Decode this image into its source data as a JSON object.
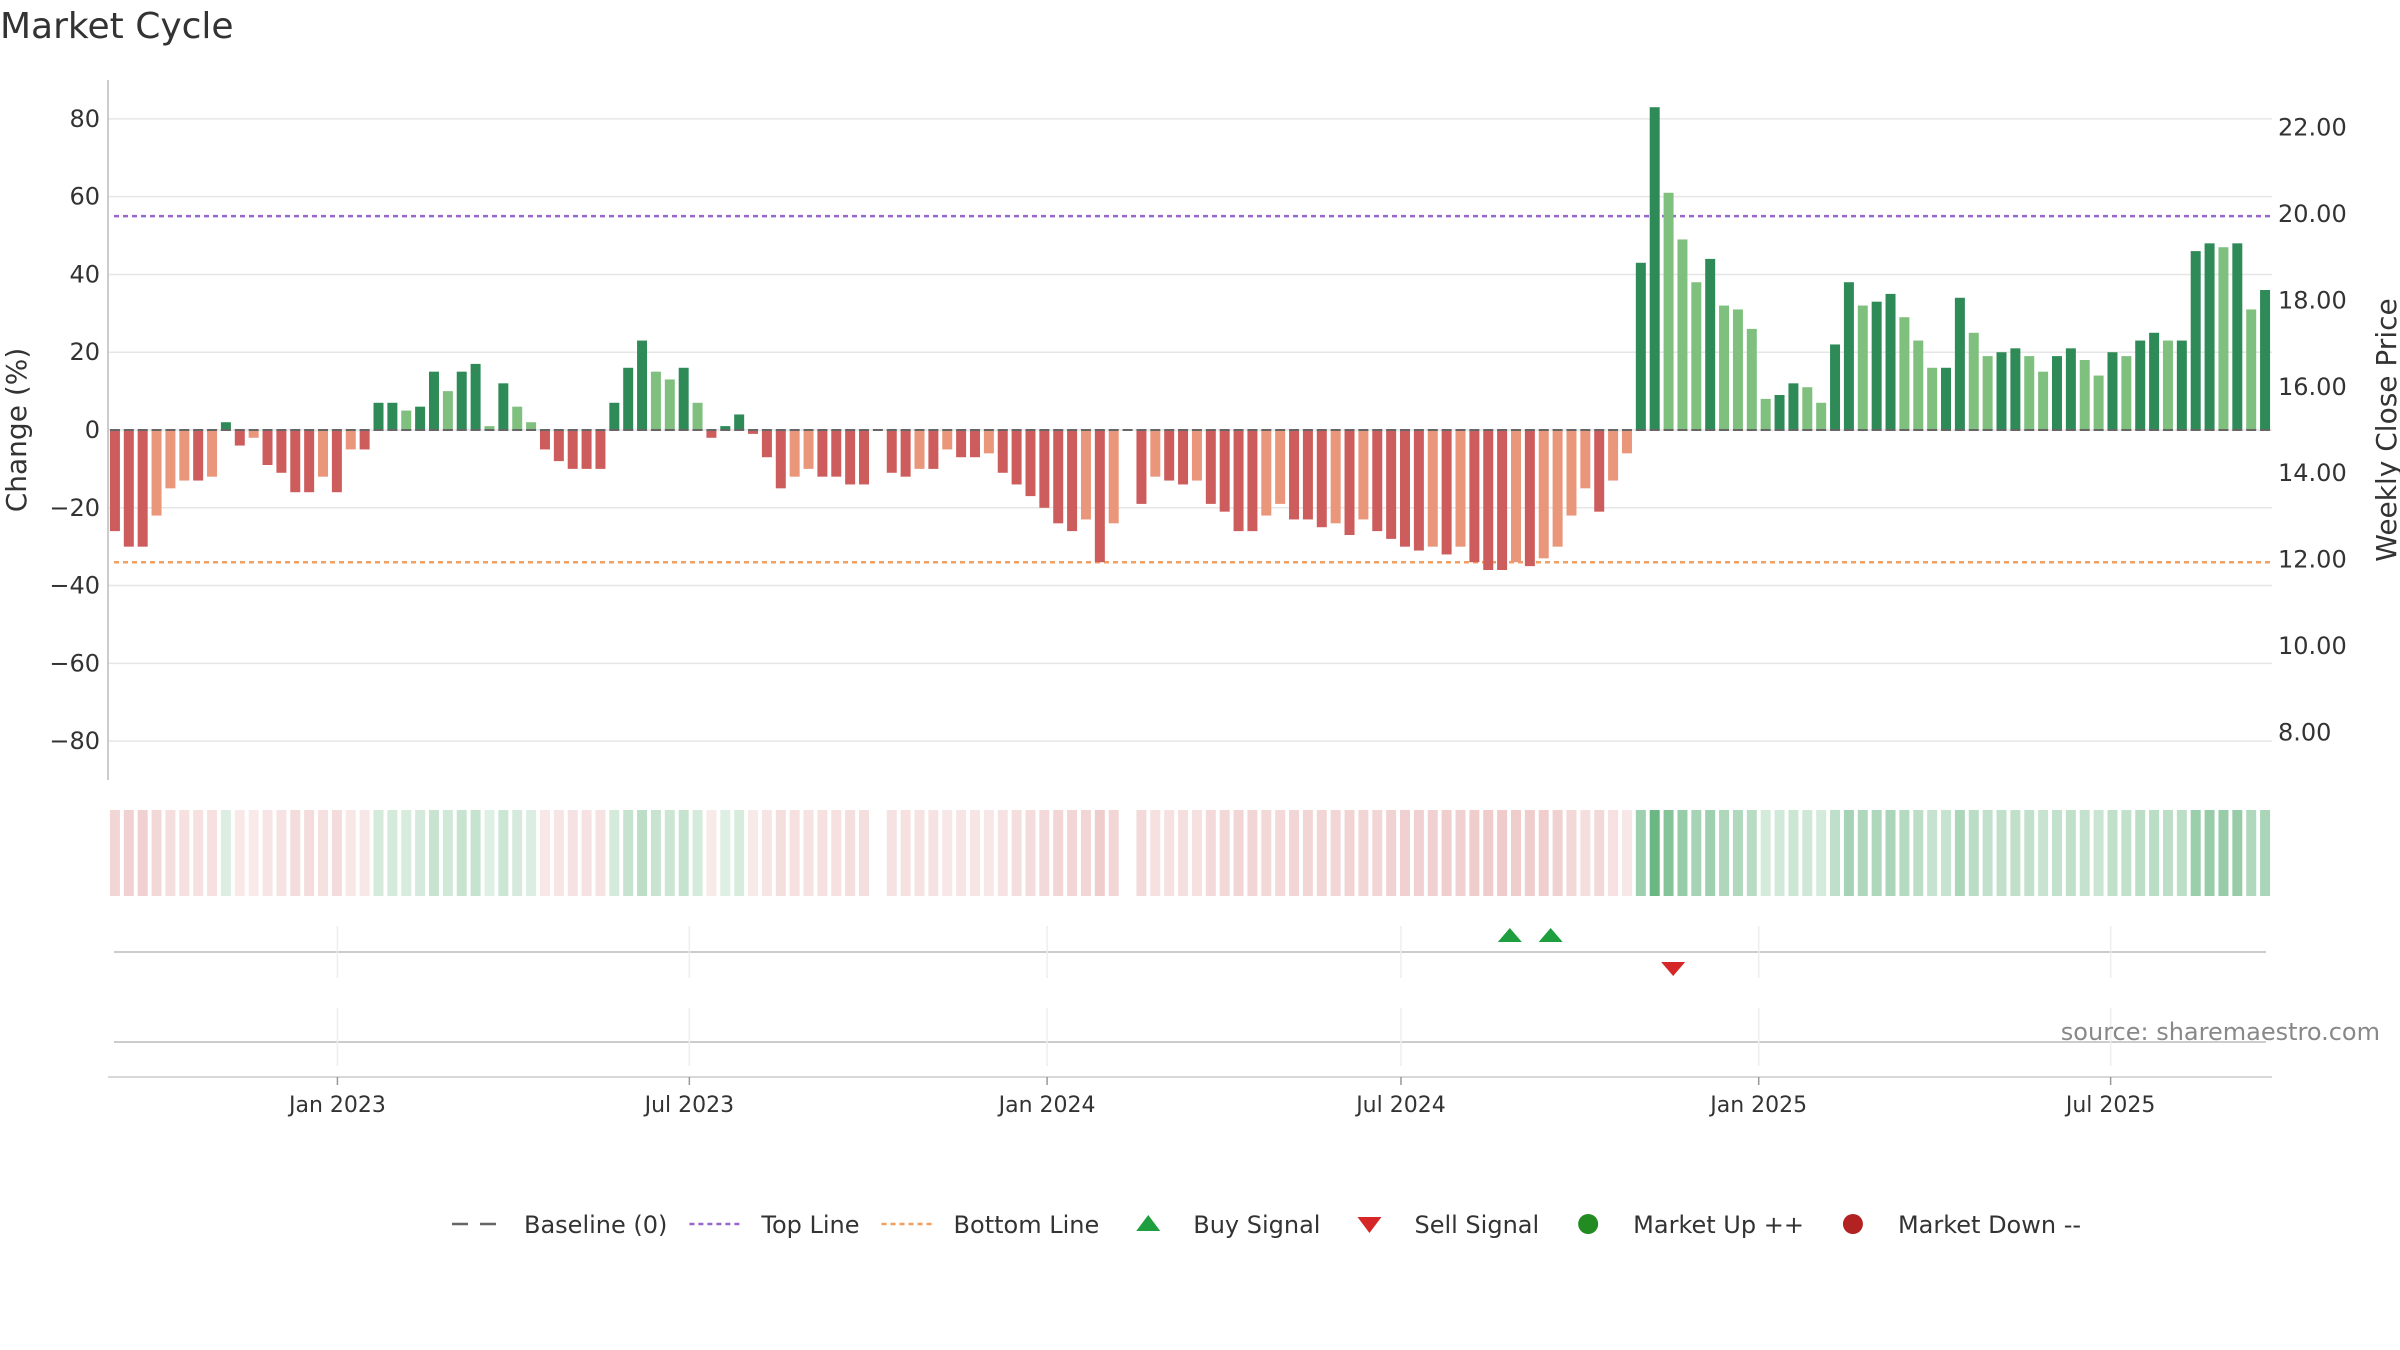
{
  "chart_data": {
    "type": "bar",
    "title": "Market Cycle",
    "ylabel": "Change (%)",
    "y2label": "Weekly Close Price",
    "ylim": [
      -90,
      90
    ],
    "y2lim": [
      6.9,
      23.1
    ],
    "yticks": [
      80,
      60,
      40,
      20,
      0,
      -20,
      -40,
      -60,
      -80
    ],
    "yticks_labels": [
      "80",
      "60",
      "40",
      "20",
      "0",
      "−20",
      "−40",
      "−60",
      "−80"
    ],
    "y2ticks": [
      "22.00",
      "20.00",
      "18.00",
      "16.00",
      "14.00",
      "12.00",
      "10.00",
      "8.00"
    ],
    "x_start": "2022-09-05",
    "x_end": "2025-09-22",
    "xticks": [
      {
        "date": "2023-01-01",
        "label": "Jan 2023"
      },
      {
        "date": "2023-07-01",
        "label": "Jul 2023"
      },
      {
        "date": "2024-01-01",
        "label": "Jan 2024"
      },
      {
        "date": "2024-07-01",
        "label": "Jul 2024"
      },
      {
        "date": "2025-01-01",
        "label": "Jan 2025"
      },
      {
        "date": "2025-07-01",
        "label": "Jul 2025"
      }
    ],
    "top_line": 55,
    "bottom_line": -34,
    "grid": true,
    "values": [
      -26,
      -30,
      -30,
      -22,
      -15,
      -13,
      -13,
      -12,
      2,
      -4,
      -2,
      -9,
      -11,
      -16,
      -16,
      -12,
      -16,
      -5,
      -5,
      7,
      7,
      5,
      6,
      15,
      10,
      15,
      17,
      1,
      12,
      6,
      2,
      -5,
      -8,
      -10,
      -10,
      -10,
      7,
      16,
      23,
      15,
      13,
      16,
      7,
      -2,
      1,
      4,
      -1,
      -7,
      -15,
      -12,
      -10,
      -12,
      -12,
      -14,
      -14,
      0,
      -11,
      -12,
      -10,
      -10,
      -5,
      -7,
      -7,
      -6,
      -11,
      -14,
      -17,
      -20,
      -24,
      -26,
      -23,
      -34,
      -24,
      0,
      -19,
      -12,
      -13,
      -14,
      -13,
      -19,
      -21,
      -26,
      -26,
      -22,
      -19,
      -23,
      -23,
      -25,
      -24,
      -27,
      -23,
      -26,
      -28,
      -30,
      -31,
      -30,
      -32,
      -30,
      -34,
      -36,
      -36,
      -34,
      -35,
      -33,
      -30,
      -22,
      -15,
      -21,
      -13,
      -6,
      43,
      83,
      61,
      49,
      38,
      44,
      32,
      31,
      26,
      8,
      9,
      12,
      11,
      7,
      22,
      38,
      32,
      33,
      35,
      29,
      23,
      16,
      16,
      34,
      25,
      19,
      20,
      21,
      19,
      15,
      19,
      21,
      18,
      14,
      20,
      19,
      23,
      25,
      23,
      23,
      46,
      48,
      47,
      48,
      31,
      36
    ],
    "signals": [
      {
        "type": "buy",
        "date": "2024-08-26"
      },
      {
        "type": "buy",
        "date": "2024-09-16"
      },
      {
        "type": "sell",
        "date": "2024-11-18"
      }
    ],
    "legend": [
      {
        "key": "baseline",
        "label": "Baseline (0)"
      },
      {
        "key": "top",
        "label": "Top Line"
      },
      {
        "key": "bottom",
        "label": "Bottom Line"
      },
      {
        "key": "buy",
        "label": "Buy Signal"
      },
      {
        "key": "sell",
        "label": "Sell Signal"
      },
      {
        "key": "up",
        "label": "Market Up ++"
      },
      {
        "key": "down",
        "label": "Market Down --"
      }
    ],
    "legend_position": "bottom-center"
  },
  "source_text": "source: sharemaestro.com",
  "colors": {
    "up_strong": "#2e8b57",
    "up_light": "#7fc07f",
    "down_strong": "#cd5c5c",
    "down_light": "#e9967a",
    "top_line": "#9966cc",
    "bottom_line": "#f0a060",
    "buy": "#1e9e3e",
    "sell": "#d62728",
    "market_up": "#228b22",
    "market_down": "#b22222",
    "baseline": "#666666"
  }
}
